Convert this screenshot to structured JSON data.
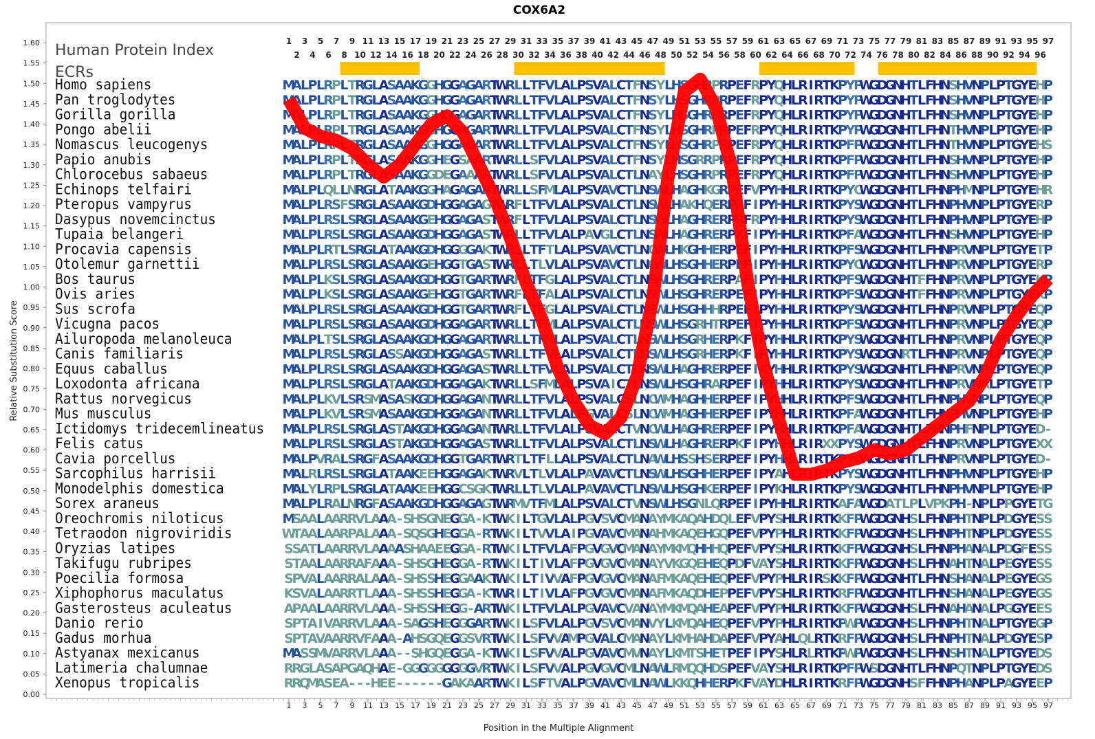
{
  "chart_data": {
    "type": "line",
    "title": "COX6A2",
    "xlabel": "Position in the Multiple Alignment",
    "ylabel": "Relative Substitution Score",
    "xlim": [
      1,
      97
    ],
    "ylim": [
      0,
      1.6
    ],
    "y_ticks": [
      "0.00",
      "0.05",
      "0.10",
      "0.15",
      "0.20",
      "0.25",
      "0.30",
      "0.35",
      "0.40",
      "0.45",
      "0.50",
      "0.55",
      "0.60",
      "0.65",
      "0.70",
      "0.75",
      "0.80",
      "0.85",
      "0.90",
      "0.95",
      "1.00",
      "1.05",
      "1.10",
      "1.15",
      "1.20",
      "1.25",
      "1.30",
      "1.35",
      "1.40",
      "1.45",
      "1.50",
      "1.55",
      "1.60"
    ],
    "x_ticks_odd": [
      1,
      3,
      5,
      7,
      9,
      11,
      13,
      15,
      17,
      19,
      21,
      23,
      25,
      27,
      29,
      31,
      33,
      35,
      37,
      39,
      41,
      43,
      45,
      47,
      49,
      51,
      53,
      55,
      57,
      59,
      61,
      63,
      65,
      67,
      69,
      71,
      73,
      75,
      77,
      79,
      81,
      83,
      85,
      87,
      89,
      91,
      93,
      95,
      97
    ],
    "x_ticks_even": [
      2,
      4,
      6,
      8,
      10,
      12,
      14,
      16,
      18,
      20,
      22,
      24,
      26,
      28,
      30,
      32,
      34,
      36,
      38,
      40,
      42,
      44,
      46,
      48,
      50,
      52,
      54,
      56,
      58,
      60,
      62,
      64,
      66,
      68,
      70,
      72,
      74,
      76,
      78,
      80,
      82,
      84,
      86,
      88,
      90,
      92,
      94,
      96
    ],
    "human_protein_index_label": "Human Protein Index",
    "ecr_label": "ECRs",
    "ecr_color": "#FFC000",
    "ecrs": [
      [
        8,
        17
      ],
      [
        30,
        48
      ],
      [
        61,
        72
      ],
      [
        76,
        95
      ]
    ],
    "line_color": "#FF0000",
    "series": [
      {
        "x": [
          1,
          3,
          5,
          7,
          9,
          11,
          13,
          15,
          17,
          19,
          21,
          23,
          25,
          27,
          29,
          31,
          33,
          35,
          37,
          39,
          41,
          43,
          45,
          47,
          49,
          51,
          53,
          55,
          57,
          59,
          61,
          63,
          65,
          67,
          69,
          71,
          73,
          75,
          77,
          79,
          81,
          83,
          85,
          87,
          89,
          91,
          93,
          95,
          97
        ],
        "values": [
          1.46,
          1.39,
          1.37,
          1.36,
          1.34,
          1.3,
          1.27,
          1.3,
          1.35,
          1.4,
          1.42,
          1.38,
          1.3,
          1.22,
          1.12,
          1.01,
          0.92,
          0.8,
          0.72,
          0.66,
          0.64,
          0.68,
          0.78,
          0.97,
          1.28,
          1.48,
          1.51,
          1.44,
          1.29,
          1.01,
          0.81,
          0.67,
          0.54,
          0.54,
          0.55,
          0.57,
          0.58,
          0.6,
          0.59,
          0.6,
          0.63,
          0.66,
          0.69,
          0.72,
          0.78,
          0.87,
          0.93,
          0.98,
          1.02
        ]
      }
    ],
    "species": [
      {
        "name": "Homo sapiens",
        "seq": "MALPLRPLTRGLASAAKGGHGGAGARTWRLLTFVLALPSVALCTFNSYLHSGHRPRPEFRPYQHLRIRTKPYPWGDGNHTLFHNSHVNPLPTGYEHP"
      },
      {
        "name": "Pan troglodytes",
        "seq": "MALPLRPLTRGLASAAKGGHGGAGARTWRLLTFVLALPSVALCTFNSYLHSGHRPRPEFRPYQHLRIRTKPYPWGDGNHTLFHNSHVNPLPTGYEHP"
      },
      {
        "name": "Gorilla gorilla",
        "seq": "MALPLRPLTRGLASAAKGGHGGAGARTWRLLTFVLALPSVALCTFNSYLHSGHRPRPEFRPYQHLRIRTKPYPWGDGNHTLFHNSHVNPLPTGYEHP"
      },
      {
        "name": "Pongo abelii",
        "seq": "MALPLRPLTRGLASAAKGGHGGAGARTWRLLTFVLALPSVALCTFNSYLHSGHRPRPEFRPYQHLRIRTKPYPWGDGNHTLFHNTHVNPLPTGYEHP"
      },
      {
        "name": "Nomascus leucogenys",
        "seq": "MALPLRPLTRGLASAAKGGHGGAGARTWRLLTFVLALPSVALCTFNSYLHSGHRPRPEFRPYQHLRIRTKPFPWGDGNHTLFHNTHVNPLPTGYEHS"
      },
      {
        "name": "Papio anubis",
        "seq": "MALPLRPLTRGLASAAKGGHEGSAARTWRLLSFVLALPSVALCTFNSYLHSGRRPRPEFRPYQHLRIRTKPFPWGDGNHTLFHNSHVNPLPTGYEHP"
      },
      {
        "name": "Chlorocebus sabaeus",
        "seq": "MALPLRPLTRGLASAAKGGDEGAAARTWRLLSFVLALPSVALCTLNAYLHSGHRPRPEFRPYQHLRIRTKPFPWGDGNHTLFHNSHVNPLPTGYEHP"
      },
      {
        "name": "Echinops telfairi",
        "seq": "MALPLQLLNRGLATAAKGGHAGAGARTWRLLSFMLALPSVAVCTLNSWLHAGHKGRPEFVPYHHLRIRTKPYCWGDGNHTLFHNPHMNPLPTGYEHR"
      },
      {
        "name": "Pteropus vampyrus",
        "seq": "MALPLRSFSRGLASAAKGDHGGAGAGTWRFLTFVLALPSVALCTLNSWLHAKHQERPRFIPYHHLRIRTKPYSWGDGNHTLFHNPHVNPLPTGYERP"
      },
      {
        "name": "Dasypus novemcinctus",
        "seq": "MALPLRSLSRGLASAAKGEHGGAGASTWRFLTFVLALPSVALCTLNSWLHAGHRERPRFRPYHHLRIRTKPYSWGDGNHTLFHNPHVNPLPTGYEHP"
      },
      {
        "name": "Tupaia belangeri",
        "seq": "MALPLRSLSRGLASAAKGDHGGAGASTWRLLTFVLALPAVGLCTLNSWLHAGHRERPKFIPYHHLRIRTKPFAWGDGNHTLFHNSHVNPLPTGYEHP"
      },
      {
        "name": "Procavia capensis",
        "seq": "MALPLRTLSRGLATAAKGDHGGGGAKTWRLLTFTLALPSVAVCTLNCWLHKGHHERPEFIPYHHLRIRTKPFSWGDGNHTLFHNPRVNPLPTGYETP"
      },
      {
        "name": "Otolemur garnettii",
        "seq": "MALPLRSLSRGLASAAKGEHGGTGASTWRLLTLVLALPSVAVCTLNCWLHSGHHERPEFIPYHHLRIRTKPYCWGDGNHTLFHNPRVNPLPTGYERP"
      },
      {
        "name": "Bos taurus",
        "seq": "MALPLKSLSRGLASAAKGDHGGTGARTWRFLTFGLALPSVALCTLNSWLHSGHRERPAFIPYHHLRIRTKPFSWGDGNHTFFHNPRVNPLPTGYEKP"
      },
      {
        "name": "Ovis aries",
        "seq": "MALPLKSLSRGLASAAKGEHGGTGARTWRFLTFALALPSVALCTLNSWLHSGHRERPEFIPYHHLRIRTKPFSWGDGNHTFFHNPRVNPLPTGYEKP"
      },
      {
        "name": "Sus scrofa",
        "seq": "MALPLRSLSRGLASAAKGDHGGTGARTWRFLTFGLALPSVALCTLNSWLHSGHHHRPEFIPYHHLRIRTKPYSWGDGNHTLFHNPRVNPLPTGYEQP"
      },
      {
        "name": "Vicugna pacos",
        "seq": "MALPLRSLSRGLASAAKGDHGGAGARTWRLLTFMLALPSVALCTLNSWLHSGRHTRPEFIPYHHLRIRTKPFSWGDGNHTLFHNPRVNPLPTGYEQP"
      },
      {
        "name": "Ailuropoda melanoleuca",
        "seq": "MALPLTSLSRGLASAAKGDHGGAGARTWRLLTFMLALPSVALCTLNSWLHSGRHERPKFIPYHHLRIRTKPYSWGDGNHTLFHNPRVNPLPTGYEQP"
      },
      {
        "name": "Canis familiaris",
        "seq": "MALPLRSLSRGLASSAKGDHGGAGASTWRLLTFVLALPSVALCTLNSWLHSGRHERPKFIPYHHLRIRTKPYSWGDGNRTLFHNPRVNPLPTGYEQP"
      },
      {
        "name": "Equus caballus",
        "seq": "MALPLRSLSRGLASAAKGDHGGAGASTWRLLTFVLALPSVALCTLNSWLHAGHRERPEFIAYHHLRIRTKPYSWGDGNHTLFHNPRVNPLPTGYEQP"
      },
      {
        "name": "Loxodonta africana",
        "seq": "MALPLRSLSRGLATAAKGDHGGAGAKTWRLLSFMLALPSVAICTLNSWLHSGHRARPEFIPYHHLRIRTKPYSWGDGNHTLFHNPRVNALPTGYETP"
      },
      {
        "name": "Rattus norvegicus",
        "seq": "MALPLKVLSRSMASASKGDHGGAGANTWRLLTFVLALPSVALCSLNCWMHAGHHERPEFIPYHHLRIRTKPFSWGDGNHTLFHNPHVNPLPTGYEQP"
      },
      {
        "name": "Mus musculus",
        "seq": "MALPLKVLSRSMASAAKGDHGGAGANTWRLLTFVLALPGVALCSLNCWMHAGHHERPEFIPYHHLRIRTKPFAWGDGNHTLFHNPHVNPLPTGYEHP"
      },
      {
        "name": "Ictidomys tridecemlineatus",
        "seq": "MALPLRSLSRGLASTAKGDHGGAGANTWRLLTFVLALPSVALCTVNCWLHAGHRERPEFIPYHHLRIRTKPFAWGDGNHTLFHNPHFNPLPTGYED-"
      },
      {
        "name": "Felis catus",
        "seq": "MALPLRSLSRGLASTAKGDHGGAGASTWRLLTFVLALPSVALCTLNSWLHAGHRERPKFIPYHHLRIRXXPYSWGDGNHTLFHNPRVNPLPTGYEXX"
      },
      {
        "name": "Cavia porcellus",
        "seq": "MALPVRALSRGFASAAKGDHGGTGARTWRTLTFLLALPSVALCTLNAWLHSSHSERPEFIPYHHLRIRTKPYCWGDGNHTLFHNPRVNPLPTGYED-"
      },
      {
        "name": "Sarcophilus harrisii",
        "seq": "MALRLRSLSRGLATAAKEEHGGAGAKTWRVLTLVLALPAVAVCTLNSWLHSGHHERPEFIPYAHLRIRTKPYSWGDGNHTLFHNPHVNPLPTGYEHP"
      },
      {
        "name": "Monodelphis domestica",
        "seq": "MALYLRPLSRGLATAAKEEHGGCSGKTWRLLTLVLALPAVAVCTLNSWLHSGHKERPEFIPYKHLRIRTKPYSWGDGNHTLFHNPHVNPLPTGYEHP"
      },
      {
        "name": "Sorex araneus",
        "seq": "MALPLRALNRGFASAAKGDHGGAGAGTWRMVTFMLALPSVALCTVNSWLHSGNLQRPEFIPYHHLRIRTKAFAWGDATLPLVPKPH-NPLPPGYETG"
      },
      {
        "name": "Oreochromis niloticus",
        "seq": "MSAALAARRVLAAA-SHSGNEGGA-KTWKILTGVLALPGVSVCMANAYMKAQAHDQLEFVPYSHLRIRTKKFPWGDGNHSLFHNPHTNPLPDGYESS"
      },
      {
        "name": "Tetraodon nigroviridis",
        "seq": "WTAALAARPALAAA-SQSGHEGGA-RTWKILTVVLAIPGVAVCMANAHMKAQEHGQPEFVPYPHLRIRTKKFPWGDGNHSLFHNPHTNPLPDGYESS"
      },
      {
        "name": "Oryzias latipes",
        "seq": "SSATLAARRVLAAAASHAAEEGGA-RTWKILTFVLAFPGVGVCMANAYMKMQHHHQPEFVPYSHLRIRTKKFPWGDGNHSLFHNPHANALPDGFESS"
      },
      {
        "name": "Takifugu rubripes",
        "seq": "STAALAARRAFAAA-SHSGHEGGA-RTWKILTIVLAFPGVGVCMANAYVKGQEHEQPDFVAYSHLRIRTKKFPWGDGNHSLFHNAHTNALPEGYESS"
      },
      {
        "name": "Poecilia formosa",
        "seq": "SPVALAARRALAAA-SHSSHEGGAAKTWKILTIVVAFPGVGVCMANAFMKAQEHEQPEFVPYPHLRIRSKKFPWGDGNHTLFHNSHANALPEGYEGS"
      },
      {
        "name": "Xiphophorus maculatus",
        "seq": "KSVALAARRTLAAA-SHSSHEGGA-KTWRILTIVLAFPGVGVCMANAFMKAQDHEPPEFVPYSHLRIRTKRFPWGDGNHTLFHNSHANALPEGYEGS"
      },
      {
        "name": "Gasterosteus aculeatus",
        "seq": "APAALAARRVLAAA-SHSSHEGG-ARTWKILTFVLALPGVAVCVANAYMKMQAHEAPEFVPYPHLRIRTKKFPWGDGNHSLFHNAHANALPGGYEES"
      },
      {
        "name": "Danio rerio",
        "seq": "SPTAIVARRVLAAA-SAGSHEGGGARTWKILSFVLALPGVSVCMANVYLKMQAHEQPEFVPYPHLRIRTKPWPWGDGNHSLFHNPHTNALPTGYEGP"
      },
      {
        "name": "Gadus morhua",
        "seq": "SPTAVAARRVFAAA-AHSGQEGGSVRTWKILSFVVAMPGVALCMANAYLKMHAHDAPEFVPYAHLQLRTKRFPWGDGNHSLFHNPHTNALPDGYESP"
      },
      {
        "name": "Astyanax mexicanus",
        "seq": "MASSMVARRVLAAA--SHGQEGGA-KTWKILSFVVALPGVAVCMVNAYLKMTSHETPEFIPYSHLRLRTKPWPWGDGNHSLFHNSHTNALPTGYEDS"
      },
      {
        "name": "Latimeria chalumnae",
        "seq": "RRGLASAPGAQHAE-GGGGGGGGGVRTWKILSFVVALPGVGVCMLNAWLRMQQHDSPEFVAYSHLRIRTKPFPWSDGNHTLFHNPQTNPLPTGYEDS"
      },
      {
        "name": "Xenopus tropicalis",
        "seq": "RRQMASEA---HEE------GAKAARTWKILSFTVALPGVAVCMLNAWLKKQHHERPKFVAYDHLRIRTKRFPWGDGNHSFFHNPHANPLPAGYEEP"
      }
    ]
  }
}
